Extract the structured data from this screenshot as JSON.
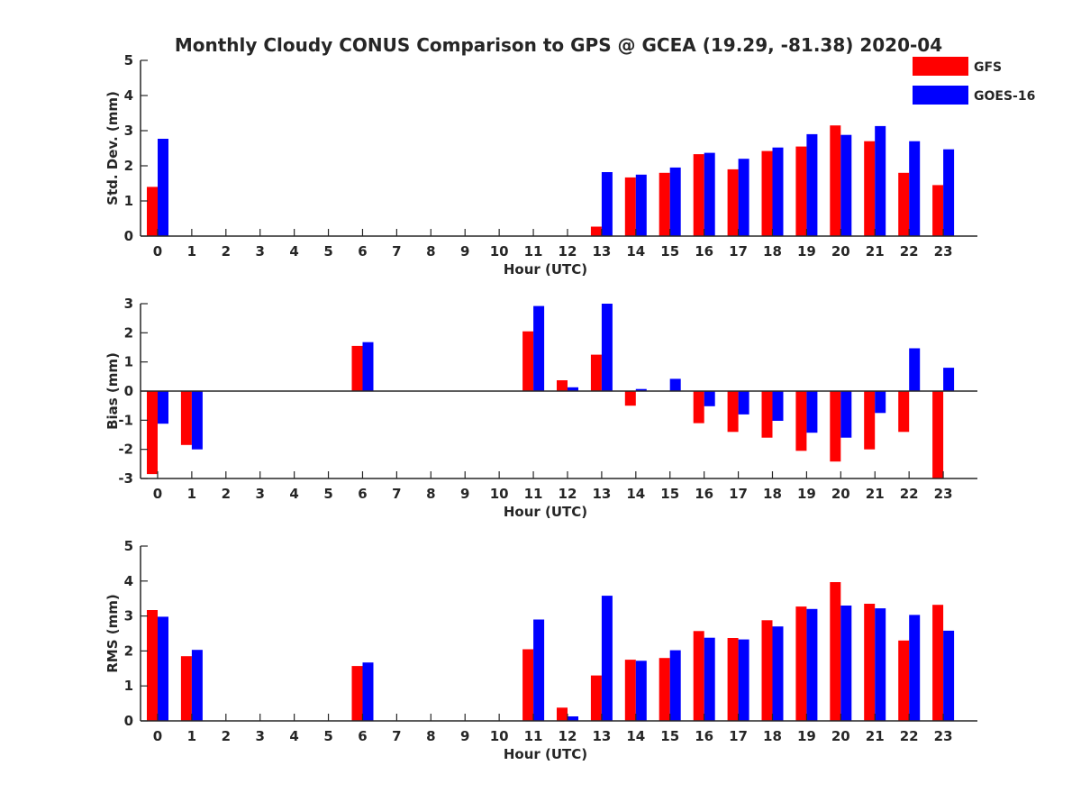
{
  "chart_data": {
    "type": "bar",
    "title": "Monthly Cloudy CONUS Comparison to GPS @ GCEA (19.29, -81.38) 2020-04",
    "legend": {
      "placement": "top-right",
      "entries": [
        "GFS",
        "GOES-16"
      ]
    },
    "colors": {
      "GFS": "#ff0000",
      "GOES-16": "#0000ff"
    },
    "categories": [
      "0",
      "1",
      "2",
      "3",
      "4",
      "5",
      "6",
      "7",
      "8",
      "9",
      "10",
      "11",
      "12",
      "13",
      "14",
      "15",
      "16",
      "17",
      "18",
      "19",
      "20",
      "21",
      "22",
      "23"
    ],
    "panels": [
      {
        "ylabel": "Std. Dev. (mm)",
        "xlabel": "Hour (UTC)",
        "ylim": [
          0,
          5
        ],
        "yticks": [
          "0",
          "1",
          "2",
          "3",
          "4",
          "5"
        ],
        "series": [
          {
            "name": "GFS",
            "values": [
              1.4,
              0,
              0,
              0,
              0,
              0,
              0,
              0,
              0,
              0,
              0,
              0,
              0,
              0.27,
              1.67,
              1.8,
              2.33,
              1.9,
              2.42,
              2.55,
              3.15,
              2.7,
              1.8,
              1.45
            ]
          },
          {
            "name": "GOES-16",
            "values": [
              2.77,
              0,
              0,
              0,
              0,
              0,
              0,
              0,
              0,
              0,
              0,
              0,
              0,
              1.82,
              1.75,
              1.95,
              2.37,
              2.2,
              2.52,
              2.9,
              2.88,
              3.13,
              2.7,
              2.47
            ]
          }
        ]
      },
      {
        "ylabel": "Bias (mm)",
        "xlabel": "Hour (UTC)",
        "ylim": [
          -3,
          3
        ],
        "yticks": [
          "-3",
          "-2",
          "-1",
          "0",
          "1",
          "2",
          "3"
        ],
        "series": [
          {
            "name": "GFS",
            "values": [
              -2.85,
              -1.85,
              0,
              0,
              0,
              0,
              1.55,
              0,
              0,
              0,
              0,
              2.05,
              0.37,
              1.25,
              -0.5,
              0,
              -1.1,
              -1.4,
              -1.6,
              -2.05,
              -2.42,
              -2.0,
              -1.4,
              -3.0
            ]
          },
          {
            "name": "GOES-16",
            "values": [
              -1.12,
              -2.0,
              0,
              0,
              0,
              0,
              1.68,
              0,
              0,
              0,
              0,
              2.92,
              0.13,
              3.0,
              0.07,
              0.42,
              -0.52,
              -0.8,
              -1.02,
              -1.43,
              -1.6,
              -0.75,
              1.47,
              0.8
            ]
          }
        ]
      },
      {
        "ylabel": "RMS (mm)",
        "xlabel": "Hour (UTC)",
        "ylim": [
          0,
          5
        ],
        "yticks": [
          "0",
          "1",
          "2",
          "3",
          "4",
          "5"
        ],
        "series": [
          {
            "name": "GFS",
            "values": [
              3.17,
              1.85,
              0,
              0,
              0,
              0,
              1.57,
              0,
              0,
              0,
              0,
              2.05,
              0.38,
              1.3,
              1.75,
              1.8,
              2.57,
              2.37,
              2.88,
              3.27,
              3.97,
              3.35,
              2.3,
              3.32
            ]
          },
          {
            "name": "GOES-16",
            "values": [
              2.98,
              2.03,
              0,
              0,
              0,
              0,
              1.67,
              0,
              0,
              0,
              0,
              2.9,
              0.13,
              3.58,
              1.72,
              2.02,
              2.38,
              2.33,
              2.7,
              3.2,
              3.3,
              3.22,
              3.03,
              2.58
            ]
          }
        ]
      }
    ]
  }
}
